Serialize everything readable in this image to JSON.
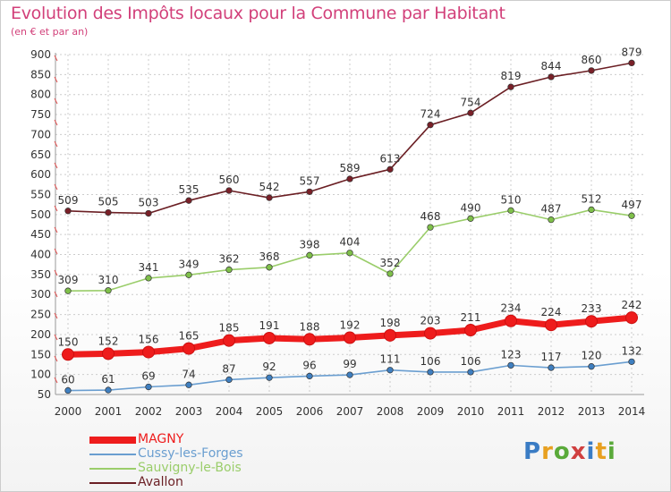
{
  "header": {
    "title": "Evolution des Impôts locaux pour la Commune par Habitant",
    "subtitle": "(en € et par an)"
  },
  "colors": {
    "title": "#d2407a",
    "grid": "#cccccc",
    "axis_text": "#333333",
    "tick_accent": "#e05050"
  },
  "logo": {
    "text": "Proxiti",
    "letter_colors": [
      "#3a7cc4",
      "#e8a020",
      "#5aaa3a",
      "#d04040",
      "#3a7cc4",
      "#e8a020",
      "#5aaa3a"
    ]
  },
  "chart_data": {
    "type": "line",
    "title": "Evolution des Impôts locaux pour la Commune par Habitant",
    "subtitle": "(en € et par an)",
    "x": [
      "2000",
      "2001",
      "2002",
      "2003",
      "2004",
      "2005",
      "2006",
      "2007",
      "2008",
      "2009",
      "2010",
      "2011",
      "2012",
      "2013",
      "2014"
    ],
    "ylim": [
      50,
      900
    ],
    "yticks": [
      50,
      100,
      150,
      200,
      250,
      300,
      350,
      400,
      450,
      500,
      550,
      600,
      650,
      700,
      750,
      800,
      850,
      900
    ],
    "grid": true,
    "legend_position": "bottom-left",
    "series": [
      {
        "name": "Avallon",
        "color": "#6b1f24",
        "marker": "#7a2028",
        "emphasis": false,
        "values": [
          509,
          505,
          503,
          535,
          560,
          542,
          557,
          589,
          613,
          724,
          754,
          819,
          844,
          860,
          879
        ]
      },
      {
        "name": "Sauvigny-le-Bois",
        "color": "#9acd6a",
        "marker": "#7fc04a",
        "emphasis": false,
        "values": [
          309,
          310,
          341,
          349,
          362,
          368,
          398,
          404,
          352,
          468,
          490,
          510,
          487,
          512,
          497
        ]
      },
      {
        "name": "MAGNY",
        "color": "#ee1c1c",
        "marker": "#ee1c1c",
        "emphasis": true,
        "values": [
          150,
          152,
          156,
          165,
          185,
          191,
          188,
          192,
          198,
          203,
          211,
          234,
          224,
          233,
          242
        ]
      },
      {
        "name": "Cussy-les-Forges",
        "color": "#6a9ed0",
        "marker": "#3f7fc0",
        "emphasis": false,
        "values": [
          60,
          61,
          69,
          74,
          87,
          92,
          96,
          99,
          111,
          106,
          106,
          123,
          117,
          120,
          132
        ]
      }
    ],
    "legend_order": [
      "MAGNY",
      "Cussy-les-Forges",
      "Sauvigny-le-Bois",
      "Avallon"
    ]
  }
}
